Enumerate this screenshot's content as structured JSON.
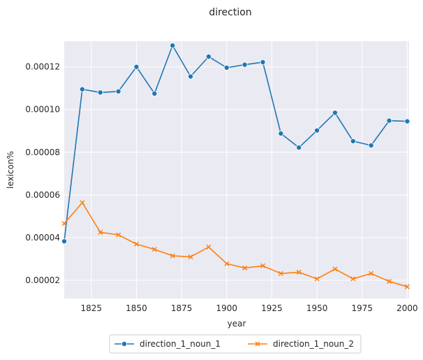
{
  "chart_data": {
    "type": "line",
    "title": "direction",
    "xlabel": "year",
    "ylabel": "lexicon%",
    "xlim": [
      1810,
      2001
    ],
    "ylim": [
      1.15e-05,
      0.000132
    ],
    "x_ticks": [
      1825,
      1850,
      1875,
      1900,
      1925,
      1950,
      1975,
      2000
    ],
    "x_tick_labels": [
      "1825",
      "1850",
      "1875",
      "1900",
      "1925",
      "1950",
      "1975",
      "2000"
    ],
    "y_ticks": [
      2e-05,
      4e-05,
      6e-05,
      8e-05,
      0.0001,
      0.00012
    ],
    "y_tick_labels": [
      "0.00002",
      "0.00004",
      "0.00006",
      "0.00008",
      "0.00010",
      "0.00012"
    ],
    "grid": true,
    "legend_position": "bottom-center",
    "x": [
      1810,
      1820,
      1830,
      1840,
      1850,
      1860,
      1870,
      1880,
      1890,
      1900,
      1910,
      1920,
      1930,
      1940,
      1950,
      1960,
      1970,
      1980,
      1990,
      2000
    ],
    "series": [
      {
        "name": "direction_1_noun_1",
        "color": "#1f77b4",
        "marker": "circle",
        "values": [
          3.83e-05,
          0.0001095,
          0.000108,
          0.0001085,
          0.00012,
          0.0001075,
          0.00013,
          0.0001155,
          0.0001248,
          0.0001196,
          0.000121,
          0.0001222,
          8.88e-05,
          8.22e-05,
          9.02e-05,
          9.85e-05,
          8.52e-05,
          8.32e-05,
          9.48e-05,
          9.45e-05
        ]
      },
      {
        "name": "direction_1_noun_2",
        "color": "#ff7f0e",
        "marker": "x",
        "values": [
          4.66e-05,
          5.64e-05,
          4.25e-05,
          4.13e-05,
          3.7e-05,
          3.45e-05,
          3.15e-05,
          3.1e-05,
          3.56e-05,
          2.78e-05,
          2.58e-05,
          2.68e-05,
          2.32e-05,
          2.38e-05,
          2.07e-05,
          2.53e-05,
          2.07e-05,
          2.32e-05,
          1.95e-05,
          1.7e-05
        ]
      }
    ]
  }
}
